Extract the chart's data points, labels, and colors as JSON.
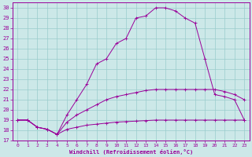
{
  "xlabel": "Windchill (Refroidissement éolien,°C)",
  "bg_color": "#cce8e8",
  "line_color": "#990099",
  "grid_color": "#99cccc",
  "xlim": [
    -0.5,
    23.5
  ],
  "ylim": [
    17,
    30.5
  ],
  "xticks": [
    0,
    1,
    2,
    3,
    4,
    5,
    6,
    7,
    8,
    9,
    10,
    11,
    12,
    13,
    14,
    15,
    16,
    17,
    18,
    19,
    20,
    21,
    22,
    23
  ],
  "yticks": [
    17,
    18,
    19,
    20,
    21,
    22,
    23,
    24,
    25,
    26,
    27,
    28,
    29,
    30
  ],
  "line1_x": [
    0,
    1,
    2,
    3,
    4,
    5,
    6,
    7,
    8,
    9,
    10,
    11,
    12,
    13,
    14,
    15,
    16,
    17,
    18,
    19,
    20,
    21,
    22,
    23
  ],
  "line1_y": [
    19.0,
    19.0,
    18.3,
    18.1,
    17.6,
    18.1,
    18.3,
    18.5,
    18.6,
    18.7,
    18.8,
    18.85,
    18.9,
    18.95,
    19.0,
    19.0,
    19.0,
    19.0,
    19.0,
    19.0,
    19.0,
    19.0,
    19.0,
    19.0
  ],
  "line2_x": [
    0,
    1,
    2,
    3,
    4,
    5,
    6,
    7,
    8,
    9,
    10,
    11,
    12,
    13,
    14,
    15,
    16,
    17,
    18,
    19,
    20,
    21,
    22,
    23
  ],
  "line2_y": [
    19.0,
    19.0,
    18.3,
    18.1,
    17.6,
    18.8,
    19.5,
    20.0,
    20.5,
    21.0,
    21.3,
    21.5,
    21.7,
    21.9,
    22.0,
    22.0,
    22.0,
    22.0,
    22.0,
    22.0,
    22.0,
    21.8,
    21.5,
    21.0
  ],
  "line3_x": [
    0,
    1,
    2,
    3,
    4,
    5,
    6,
    7,
    8,
    9,
    10,
    11,
    12,
    13,
    14,
    15,
    16,
    17,
    18,
    19,
    20,
    21,
    22,
    23
  ],
  "line3_y": [
    19.0,
    19.0,
    18.3,
    18.1,
    17.6,
    19.5,
    21.0,
    22.5,
    24.5,
    25.0,
    26.5,
    27.0,
    29.0,
    29.2,
    30.0,
    30.0,
    29.7,
    29.0,
    28.5,
    25.0,
    21.5,
    21.3,
    21.0,
    19.0
  ]
}
